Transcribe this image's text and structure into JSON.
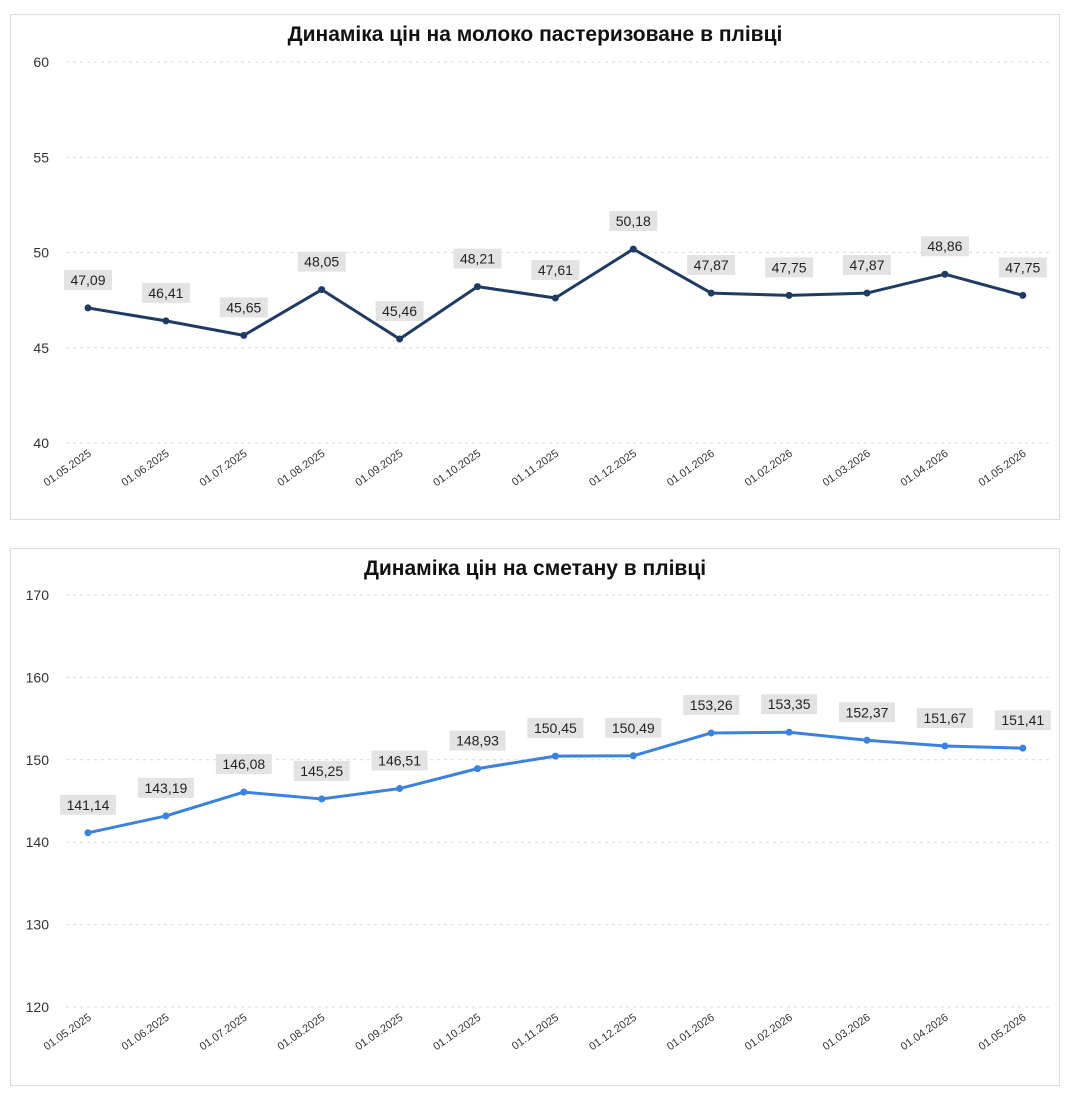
{
  "chart_data": [
    {
      "type": "line",
      "title": "Динаміка цін на молоко пастеризоване в плівці",
      "xlabel": "",
      "ylabel": "",
      "ylim": [
        40,
        60
      ],
      "yticks": [
        "40",
        "45",
        "50",
        "55",
        "60"
      ],
      "grid": true,
      "color": "#1f3b63",
      "categories": [
        "01.05.2025",
        "01.06.2025",
        "01.07.2025",
        "01.08.2025",
        "01.09.2025",
        "01.10.2025",
        "01.11.2025",
        "01.12.2025",
        "01.01.2026",
        "01.02.2026",
        "01.03.2026",
        "01.04.2026",
        "01.05.2026"
      ],
      "values": [
        47.09,
        46.41,
        45.65,
        48.05,
        45.46,
        48.21,
        47.61,
        50.18,
        47.87,
        47.75,
        47.87,
        48.86,
        47.75
      ],
      "labels": [
        "47,09",
        "46,41",
        "45,65",
        "48,05",
        "45,46",
        "48,21",
        "47,61",
        "50,18",
        "47,87",
        "47,75",
        "47,87",
        "48,86",
        "47,75"
      ]
    },
    {
      "type": "line",
      "title": "Динаміка цін на сметану в плівці",
      "xlabel": "",
      "ylabel": "",
      "ylim": [
        120,
        170
      ],
      "yticks": [
        "120",
        "130",
        "140",
        "150",
        "160",
        "170"
      ],
      "grid": true,
      "color": "#3b82e0",
      "categories": [
        "01.05.2025",
        "01.06.2025",
        "01.07.2025",
        "01.08.2025",
        "01.09.2025",
        "01.10.2025",
        "01.11.2025",
        "01.12.2025",
        "01.01.2026",
        "01.02.2026",
        "01.03.2026",
        "01.04.2026",
        "01.05.2026"
      ],
      "values": [
        141.14,
        143.19,
        146.08,
        145.25,
        146.51,
        148.93,
        150.45,
        150.49,
        153.26,
        153.35,
        152.37,
        151.67,
        151.41
      ],
      "labels": [
        "141,14",
        "143,19",
        "146,08",
        "145,25",
        "146,51",
        "148,93",
        "150,45",
        "150,49",
        "153,26",
        "153,35",
        "152,37",
        "151,67",
        "151,41"
      ]
    }
  ]
}
